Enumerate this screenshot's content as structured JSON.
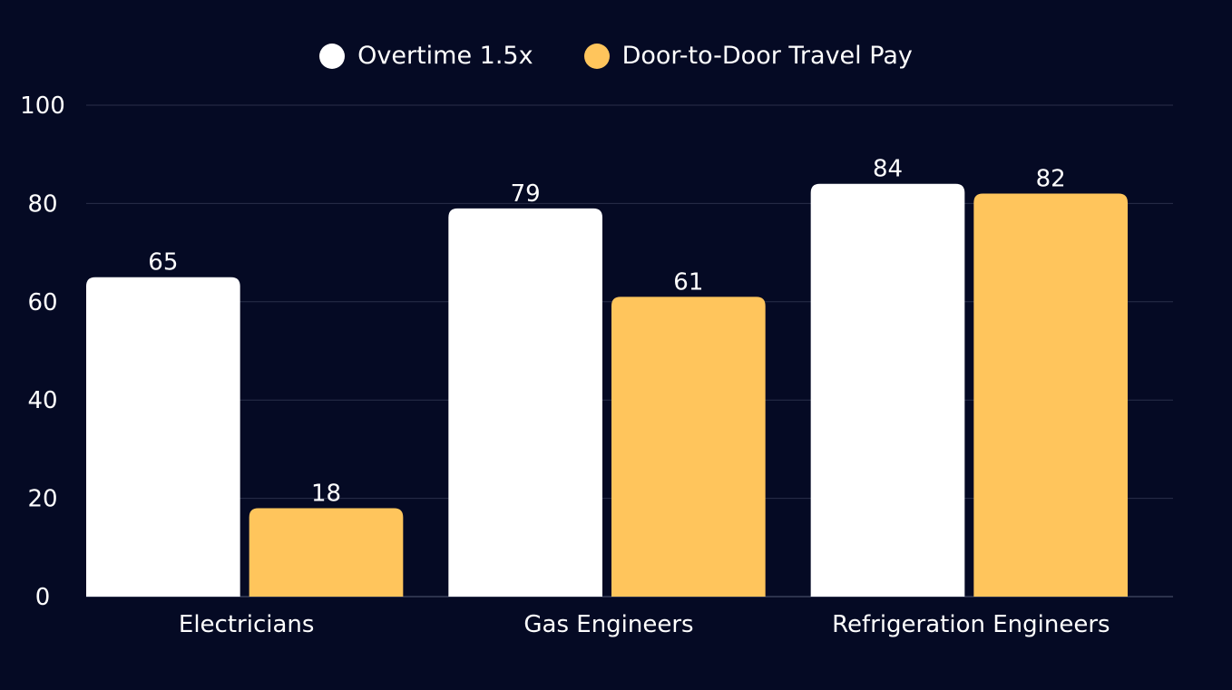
{
  "colors": {
    "background": "#050a24",
    "gridline": "#2a2f4a",
    "axis": "#3a3f5a",
    "text": "#ffffff"
  },
  "chart_data": {
    "type": "bar",
    "title": "",
    "xlabel": "",
    "ylabel": "",
    "categories": [
      "Electricians",
      "Gas Engineers",
      "Refrigeration Engineers"
    ],
    "series": [
      {
        "name": "Overtime 1.5x",
        "color": "#ffffff",
        "values": [
          65,
          79,
          84
        ]
      },
      {
        "name": "Door-to-Door Travel Pay",
        "color": "#ffc55c",
        "values": [
          18,
          61,
          82
        ]
      }
    ],
    "ylim": [
      0,
      100
    ],
    "yticks": [
      0,
      20,
      40,
      60,
      80,
      100
    ],
    "grid": true,
    "legend_position": "top-center",
    "data_labels": true
  }
}
